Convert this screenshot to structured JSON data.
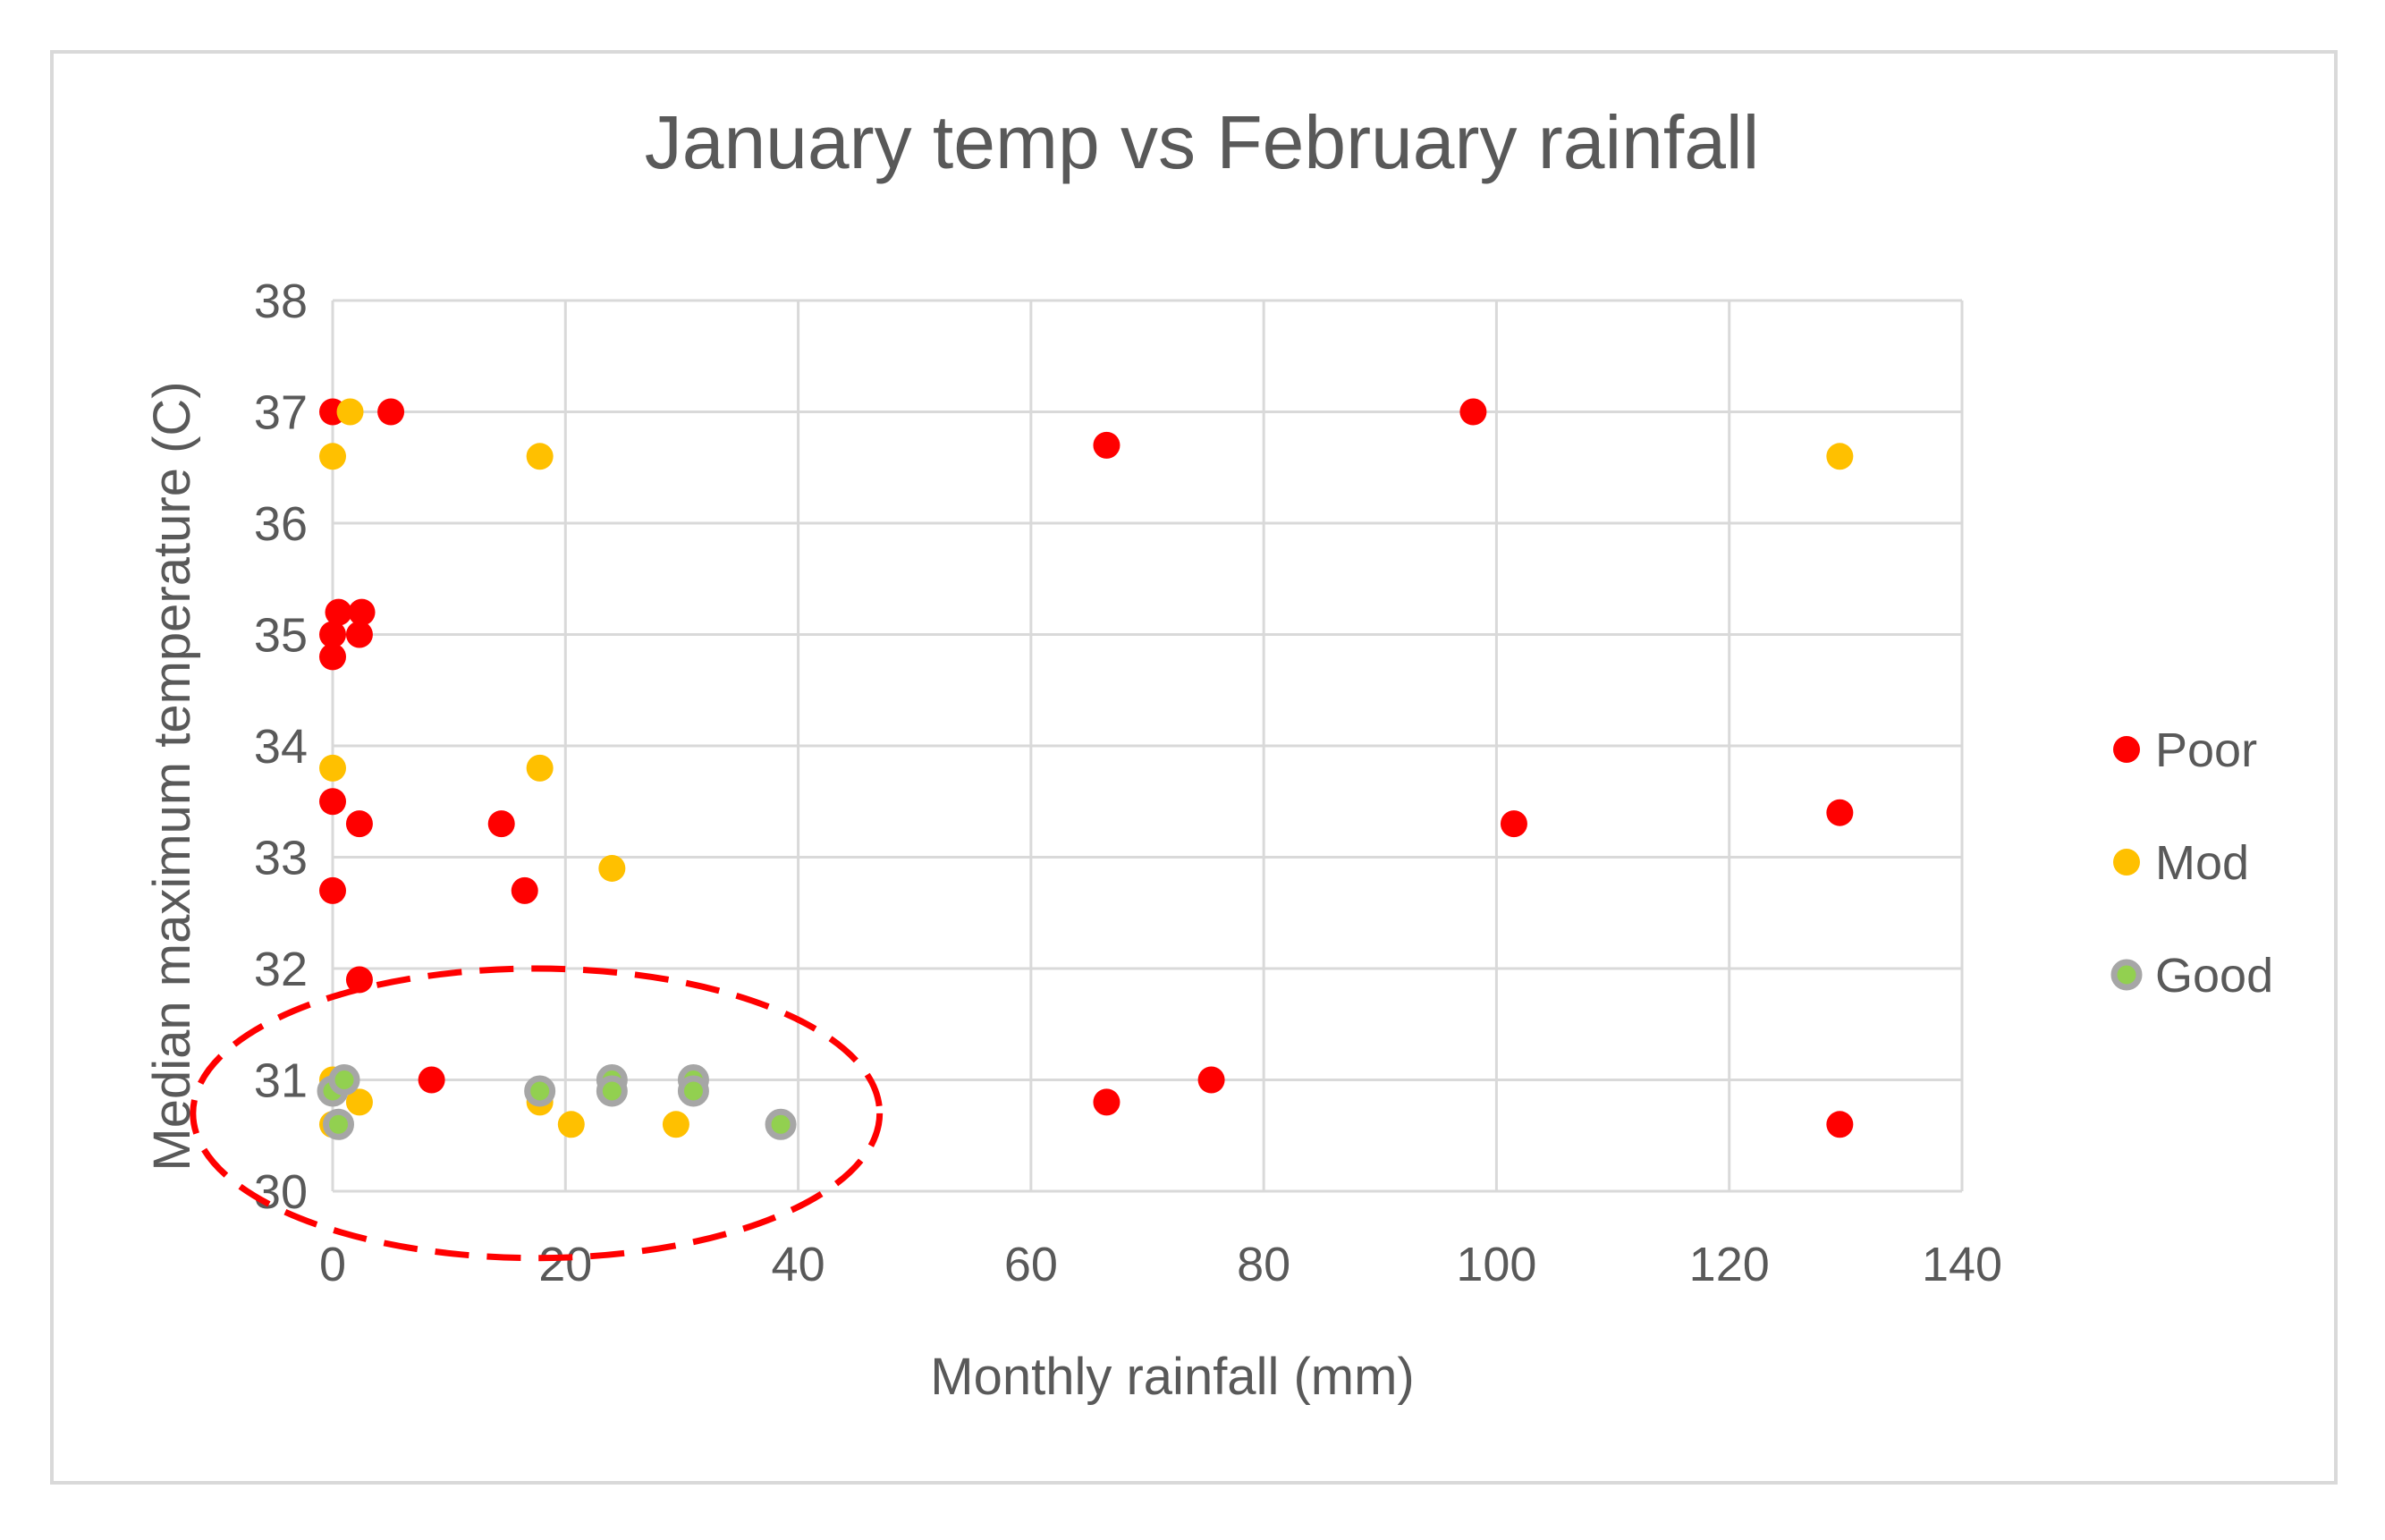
{
  "chart_data": {
    "type": "scatter",
    "title": "January temp vs February rainfall",
    "xlabel": "Monthly rainfall (mm)",
    "ylabel": "Median maximum temperature (C)",
    "xlim": [
      0,
      140
    ],
    "ylim": [
      30,
      38
    ],
    "xticks": [
      0,
      20,
      40,
      60,
      80,
      100,
      120,
      140
    ],
    "yticks": [
      30,
      31,
      32,
      33,
      34,
      35,
      36,
      37,
      38
    ],
    "grid": true,
    "legend_position": "right",
    "series": [
      {
        "name": "Poor",
        "color": "#ff0000",
        "points": [
          [
            0,
            37.0
          ],
          [
            5,
            37.0
          ],
          [
            66.5,
            36.7
          ],
          [
            98,
            37.0
          ],
          [
            0,
            35.0
          ],
          [
            0.5,
            35.2
          ],
          [
            2.5,
            35.2
          ],
          [
            2.3,
            35.0
          ],
          [
            0,
            34.8
          ],
          [
            0,
            33.5
          ],
          [
            2.3,
            33.3
          ],
          [
            14.5,
            33.3
          ],
          [
            0,
            32.7
          ],
          [
            16.5,
            32.7
          ],
          [
            101.5,
            33.3
          ],
          [
            129.5,
            33.4
          ],
          [
            2.3,
            31.9
          ],
          [
            8.5,
            31.0
          ],
          [
            66.5,
            30.8
          ],
          [
            75.5,
            31.0
          ],
          [
            129.5,
            30.6
          ]
        ]
      },
      {
        "name": "Mod",
        "color": "#ffc000",
        "points": [
          [
            1.5,
            37.0
          ],
          [
            0,
            36.6
          ],
          [
            17.8,
            36.6
          ],
          [
            129.5,
            36.6
          ],
          [
            0,
            33.8
          ],
          [
            17.8,
            33.8
          ],
          [
            24,
            32.9
          ],
          [
            0,
            31.0
          ],
          [
            0,
            30.6
          ],
          [
            2.3,
            30.8
          ],
          [
            17.8,
            30.8
          ],
          [
            20.5,
            30.6
          ],
          [
            29.5,
            30.6
          ]
        ]
      },
      {
        "name": "Good",
        "color": "#92d050",
        "edge_color": "#a6a6a6",
        "points": [
          [
            0,
            30.9
          ],
          [
            1,
            31.0
          ],
          [
            0.5,
            30.6
          ],
          [
            17.8,
            30.9
          ],
          [
            24,
            31.0
          ],
          [
            24,
            30.9
          ],
          [
            31,
            31.0
          ],
          [
            31,
            30.9
          ],
          [
            38.5,
            30.6
          ]
        ]
      }
    ],
    "annotations": [
      {
        "type": "dashed-ellipse",
        "color": "#ff0000",
        "center": [
          17.5,
          30.7
        ],
        "rx_data": 29.5,
        "ry_data": 1.3
      }
    ]
  }
}
